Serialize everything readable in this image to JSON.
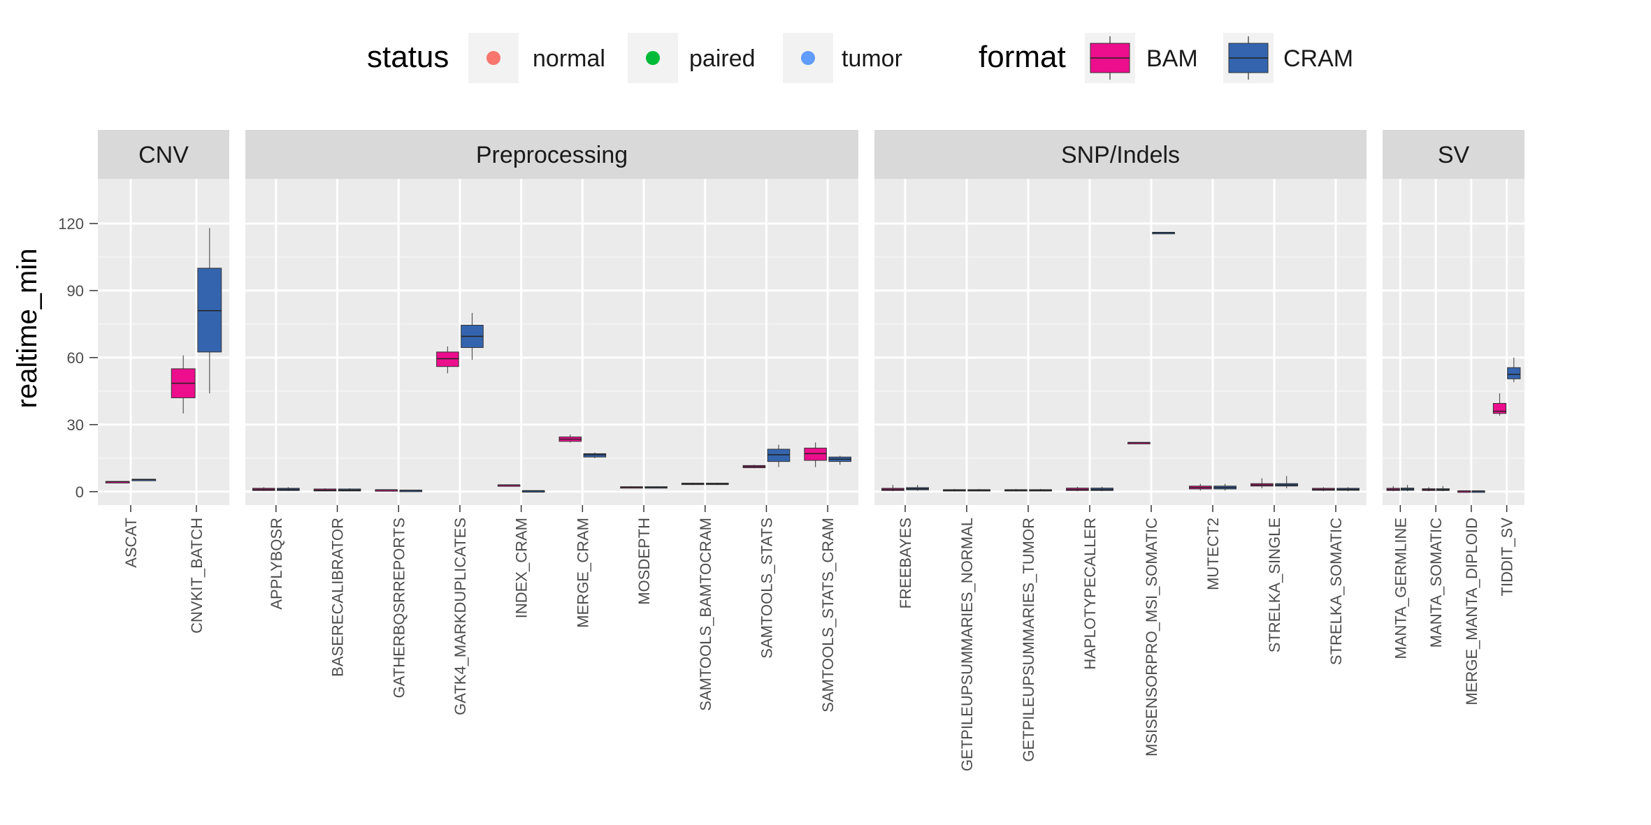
{
  "chart_data": {
    "type": "boxplot",
    "ylabel": "realtime_min",
    "ylim": [
      -6,
      140
    ],
    "yticks": [
      0,
      30,
      60,
      90,
      120
    ],
    "grid": true,
    "legend_position": "top",
    "legends": [
      {
        "title": "status",
        "entries": [
          {
            "label": "normal",
            "color": "#F8766D"
          },
          {
            "label": "paired",
            "color": "#00BA38"
          },
          {
            "label": "tumor",
            "color": "#619CFF"
          }
        ]
      },
      {
        "title": "format",
        "entries": [
          {
            "label": "BAM",
            "color": "#EC0E8C"
          },
          {
            "label": "CRAM",
            "color": "#3464AD"
          }
        ]
      }
    ],
    "facets": [
      {
        "label": "CNV",
        "categories": [
          "ASCAT",
          "CNVKIT_BATCH"
        ],
        "boxes": [
          {
            "category": "ASCAT",
            "format": "BAM",
            "q1": 4.5,
            "median": 4.5,
            "q3": 4.5,
            "min": 4.5,
            "max": 4.5
          },
          {
            "category": "ASCAT",
            "format": "CRAM",
            "q1": 5.5,
            "median": 5.5,
            "q3": 5.5,
            "min": 5.5,
            "max": 5.5
          },
          {
            "category": "CNVKIT_BATCH",
            "format": "BAM",
            "q1": 42,
            "median": 48.5,
            "q3": 55,
            "min": 35,
            "max": 61
          },
          {
            "category": "CNVKIT_BATCH",
            "format": "CRAM",
            "q1": 62.5,
            "median": 81,
            "q3": 100,
            "min": 44,
            "max": 118
          }
        ]
      },
      {
        "label": "Preprocessing",
        "categories": [
          "APPLYBQSR",
          "BASERECALIBRATOR",
          "GATHERBQSRREPORTS",
          "GATK4_MARKDUPLICATES",
          "INDEX_CRAM",
          "MERGE_CRAM",
          "MOSDEPTH",
          "SAMTOOLS_BAMTOCRAM",
          "SAMTOOLS_STATS",
          "SAMTOOLS_STATS_CRAM"
        ],
        "boxes": [
          {
            "category": "APPLYBQSR",
            "format": "BAM",
            "q1": 0.5,
            "median": 1,
            "q3": 1.5,
            "min": 0.3,
            "max": 2
          },
          {
            "category": "APPLYBQSR",
            "format": "CRAM",
            "q1": 0.5,
            "median": 1,
            "q3": 1.5,
            "min": 0.3,
            "max": 2
          },
          {
            "category": "BASERECALIBRATOR",
            "format": "BAM",
            "q1": 0.3,
            "median": 0.7,
            "q3": 1.2,
            "min": 0.1,
            "max": 1.5
          },
          {
            "category": "BASERECALIBRATOR",
            "format": "CRAM",
            "q1": 0.3,
            "median": 0.7,
            "q3": 1.2,
            "min": 0.1,
            "max": 1.5
          },
          {
            "category": "GATHERBQSRREPORTS",
            "format": "BAM",
            "q1": 0.8,
            "median": 0.8,
            "q3": 0.8,
            "min": 0.8,
            "max": 0.8
          },
          {
            "category": "GATHERBQSRREPORTS",
            "format": "CRAM",
            "q1": 0.6,
            "median": 0.6,
            "q3": 0.6,
            "min": 0.6,
            "max": 0.6
          },
          {
            "category": "GATK4_MARKDUPLICATES",
            "format": "BAM",
            "q1": 56,
            "median": 59.5,
            "q3": 62.5,
            "min": 53,
            "max": 65
          },
          {
            "category": "GATK4_MARKDUPLICATES",
            "format": "CRAM",
            "q1": 64.5,
            "median": 69.5,
            "q3": 74.5,
            "min": 59,
            "max": 80
          },
          {
            "category": "INDEX_CRAM",
            "format": "BAM",
            "q1": 3,
            "median": 3,
            "q3": 3,
            "min": 3,
            "max": 3
          },
          {
            "category": "INDEX_CRAM",
            "format": "CRAM",
            "q1": 0.4,
            "median": 0.4,
            "q3": 0.4,
            "min": 0.4,
            "max": 0.4
          },
          {
            "category": "MERGE_CRAM",
            "format": "BAM",
            "q1": 22.5,
            "median": 23.5,
            "q3": 24.5,
            "min": 22,
            "max": 25.5
          },
          {
            "category": "MERGE_CRAM",
            "format": "CRAM",
            "q1": 15.5,
            "median": 16.5,
            "q3": 17,
            "min": 15,
            "max": 17.5
          },
          {
            "category": "MOSDEPTH",
            "format": "BAM",
            "q1": 1.8,
            "median": 2,
            "q3": 2.2,
            "min": 1.6,
            "max": 2.4
          },
          {
            "category": "MOSDEPTH",
            "format": "CRAM",
            "q1": 1.8,
            "median": 2,
            "q3": 2.2,
            "min": 1.6,
            "max": 2.4
          },
          {
            "category": "SAMTOOLS_BAMTOCRAM",
            "format": "BAM",
            "q1": 3.2,
            "median": 3.5,
            "q3": 3.8,
            "min": 3,
            "max": 4
          },
          {
            "category": "SAMTOOLS_BAMTOCRAM",
            "format": "CRAM",
            "q1": 3.2,
            "median": 3.5,
            "q3": 3.8,
            "min": 3,
            "max": 4
          },
          {
            "category": "SAMTOOLS_STATS",
            "format": "BAM",
            "q1": 10.7,
            "median": 11.2,
            "q3": 11.7,
            "min": 10.5,
            "max": 12
          },
          {
            "category": "SAMTOOLS_STATS",
            "format": "CRAM",
            "q1": 13.5,
            "median": 16.5,
            "q3": 19,
            "min": 11,
            "max": 21
          },
          {
            "category": "SAMTOOLS_STATS_CRAM",
            "format": "BAM",
            "q1": 14,
            "median": 17,
            "q3": 19.5,
            "min": 11,
            "max": 22
          },
          {
            "category": "SAMTOOLS_STATS_CRAM",
            "format": "CRAM",
            "q1": 13.5,
            "median": 14.5,
            "q3": 15.5,
            "min": 12,
            "max": 16
          }
        ]
      },
      {
        "label": "SNP/Indels",
        "categories": [
          "FREEBAYES",
          "GETPILEUPSUMMARIES_NORMAL",
          "GETPILEUPSUMMARIES_TUMOR",
          "HAPLOTYPECALLER",
          "MSISENSORPRO_MSI_SOMATIC",
          "MUTECT2",
          "STRELKA_SINGLE",
          "STRELKA_SOMATIC"
        ],
        "boxes": [
          {
            "category": "FREEBAYES",
            "format": "BAM",
            "q1": 0.5,
            "median": 1,
            "q3": 1.5,
            "min": 0.2,
            "max": 3
          },
          {
            "category": "FREEBAYES",
            "format": "CRAM",
            "q1": 0.8,
            "median": 1.3,
            "q3": 1.8,
            "min": 0.4,
            "max": 3
          },
          {
            "category": "GETPILEUPSUMMARIES_NORMAL",
            "format": "BAM",
            "q1": 0.3,
            "median": 0.6,
            "q3": 0.9,
            "min": 0.1,
            "max": 1.2
          },
          {
            "category": "GETPILEUPSUMMARIES_NORMAL",
            "format": "CRAM",
            "q1": 0.3,
            "median": 0.6,
            "q3": 0.9,
            "min": 0.1,
            "max": 1.2
          },
          {
            "category": "GETPILEUPSUMMARIES_TUMOR",
            "format": "BAM",
            "q1": 0.3,
            "median": 0.6,
            "q3": 0.9,
            "min": 0.1,
            "max": 1.2
          },
          {
            "category": "GETPILEUPSUMMARIES_TUMOR",
            "format": "CRAM",
            "q1": 0.3,
            "median": 0.6,
            "q3": 0.9,
            "min": 0.1,
            "max": 1.2
          },
          {
            "category": "HAPLOTYPECALLER",
            "format": "BAM",
            "q1": 0.5,
            "median": 1,
            "q3": 1.6,
            "min": 0.2,
            "max": 2.2
          },
          {
            "category": "HAPLOTYPECALLER",
            "format": "CRAM",
            "q1": 0.5,
            "median": 1,
            "q3": 1.6,
            "min": 0.2,
            "max": 2.2
          },
          {
            "category": "MSISENSORPRO_MSI_SOMATIC",
            "format": "BAM",
            "q1": 22,
            "median": 22,
            "q3": 22,
            "min": 22,
            "max": 22
          },
          {
            "category": "MSISENSORPRO_MSI_SOMATIC",
            "format": "CRAM",
            "q1": 116,
            "median": 116,
            "q3": 116,
            "min": 116,
            "max": 116
          },
          {
            "category": "MUTECT2",
            "format": "BAM",
            "q1": 1.2,
            "median": 1.8,
            "q3": 2.5,
            "min": 0.5,
            "max": 3.5
          },
          {
            "category": "MUTECT2",
            "format": "CRAM",
            "q1": 1.2,
            "median": 1.8,
            "q3": 2.5,
            "min": 0.5,
            "max": 3.5
          },
          {
            "category": "STRELKA_SINGLE",
            "format": "BAM",
            "q1": 2.5,
            "median": 3,
            "q3": 3.6,
            "min": 1.5,
            "max": 6
          },
          {
            "category": "STRELKA_SINGLE",
            "format": "CRAM",
            "q1": 2.5,
            "median": 3,
            "q3": 3.6,
            "min": 1.5,
            "max": 7
          },
          {
            "category": "STRELKA_SOMATIC",
            "format": "BAM",
            "q1": 0.6,
            "median": 1,
            "q3": 1.5,
            "min": 0.2,
            "max": 2
          },
          {
            "category": "STRELKA_SOMATIC",
            "format": "CRAM",
            "q1": 0.6,
            "median": 1,
            "q3": 1.5,
            "min": 0.2,
            "max": 2
          }
        ]
      },
      {
        "label": "SV",
        "categories": [
          "MANTA_GERMLINE",
          "MANTA_SOMATIC",
          "MERGE_MANTA_DIPLOID",
          "TIDDIT_SV"
        ],
        "boxes": [
          {
            "category": "MANTA_GERMLINE",
            "format": "BAM",
            "q1": 0.5,
            "median": 1,
            "q3": 1.5,
            "min": 0.2,
            "max": 2.5
          },
          {
            "category": "MANTA_GERMLINE",
            "format": "CRAM",
            "q1": 0.6,
            "median": 1.1,
            "q3": 1.6,
            "min": 0.2,
            "max": 3
          },
          {
            "category": "MANTA_SOMATIC",
            "format": "BAM",
            "q1": 0.5,
            "median": 0.9,
            "q3": 1.3,
            "min": 0.2,
            "max": 2
          },
          {
            "category": "MANTA_SOMATIC",
            "format": "CRAM",
            "q1": 0.5,
            "median": 0.9,
            "q3": 1.3,
            "min": 0.2,
            "max": 2.5
          },
          {
            "category": "MERGE_MANTA_DIPLOID",
            "format": "BAM",
            "q1": 0.3,
            "median": 0.3,
            "q3": 0.3,
            "min": 0.3,
            "max": 0.3
          },
          {
            "category": "MERGE_MANTA_DIPLOID",
            "format": "CRAM",
            "q1": 0.3,
            "median": 0.3,
            "q3": 0.3,
            "min": 0.3,
            "max": 0.3
          },
          {
            "category": "TIDDIT_SV",
            "format": "BAM",
            "q1": 35,
            "median": 36,
            "q3": 39.5,
            "min": 34,
            "max": 44
          },
          {
            "category": "TIDDIT_SV",
            "format": "CRAM",
            "q1": 50.5,
            "median": 52.5,
            "q3": 55.5,
            "min": 49,
            "max": 60
          }
        ]
      }
    ]
  }
}
